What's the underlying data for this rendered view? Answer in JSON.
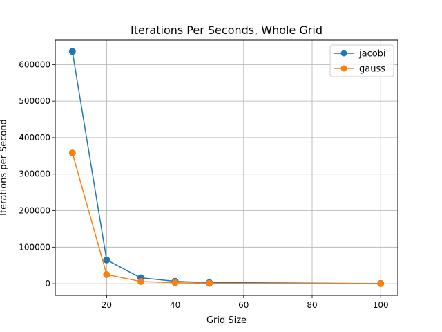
{
  "chart_data": {
    "type": "line",
    "title": "Iterations Per Seconds, Whole Grid",
    "xlabel": "Grid Size",
    "ylabel": "Iterations per Second",
    "xlim": [
      5,
      105
    ],
    "ylim": [
      -32000,
      667000
    ],
    "xticks": [
      20,
      40,
      60,
      80,
      100
    ],
    "yticks": [
      0,
      100000,
      200000,
      300000,
      400000,
      500000,
      600000
    ],
    "grid": true,
    "legend_position": "top-right",
    "series": [
      {
        "name": "jacobi",
        "color": "#1f77b4",
        "marker": "circle",
        "x": [
          10,
          20,
          30,
          40,
          50,
          100
        ],
        "y": [
          636000,
          65000,
          16000,
          6500,
          3000,
          600
        ]
      },
      {
        "name": "gauss",
        "color": "#ff7f0e",
        "marker": "circle",
        "x": [
          10,
          20,
          30,
          40,
          50,
          100
        ],
        "y": [
          358000,
          25000,
          6000,
          2500,
          1000,
          300
        ]
      }
    ]
  }
}
